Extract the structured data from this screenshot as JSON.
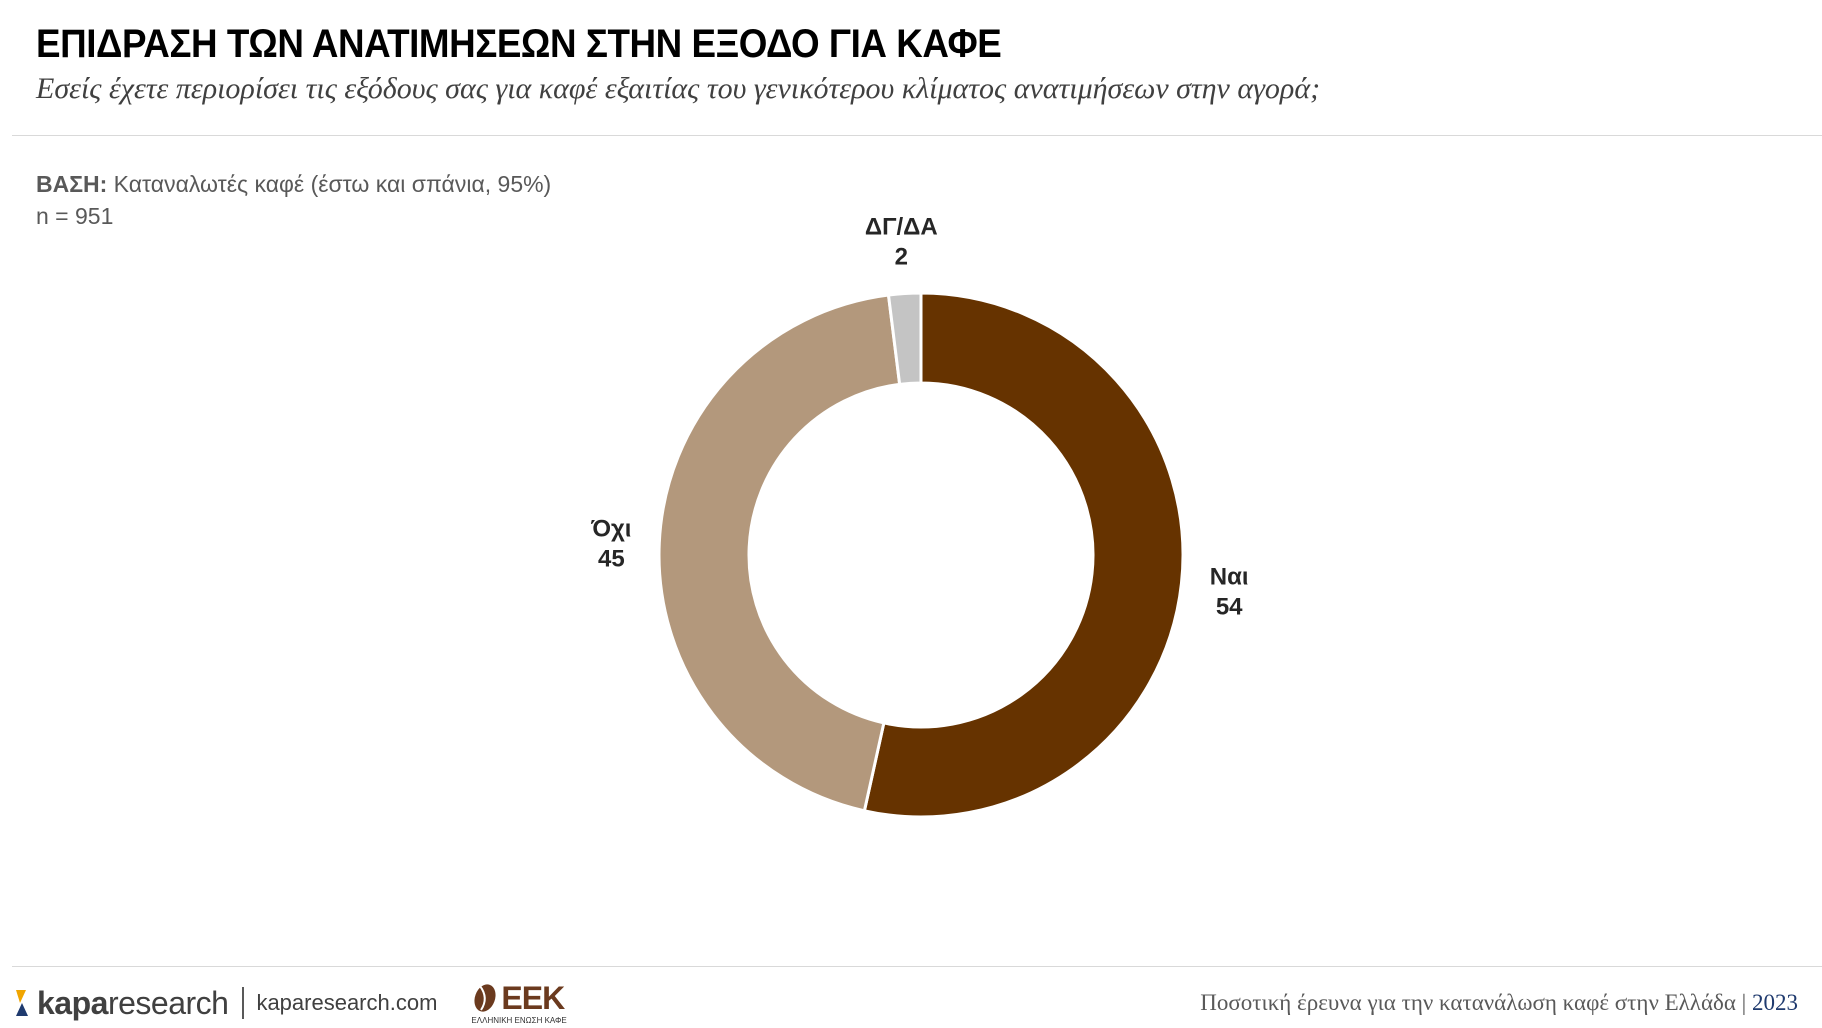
{
  "header": {
    "title": "ΕΠΙΔΡΑΣΗ ΤΩΝ ΑΝΑΤΙΜΗΣΕΩΝ ΣΤΗΝ ΕΞΟΔΟ ΓΙΑ ΚΑΦΕ",
    "subtitle": "Εσείς έχετε περιορίσει τις εξόδους σας για καφέ εξαιτίας του γενικότερου κλίματος ανατιμήσεων στην αγορά;"
  },
  "base": {
    "label": "ΒΑΣΗ:",
    "text": " Καταναλωτές καφέ (έστω και σπάνια, 95%)",
    "n": "n = 951"
  },
  "chart_data": {
    "type": "pie",
    "donut": true,
    "categories": [
      "Ναι",
      "Όχι",
      "ΔΓ/ΔΑ"
    ],
    "values": [
      54,
      45,
      2
    ],
    "colors": [
      "#663300",
      "#b3987c",
      "#c4c4c4"
    ],
    "legend": "none",
    "data_labels": "outside"
  },
  "footer": {
    "brand_bold": "kapa",
    "brand_light": "research",
    "site": "kaparesearch.com",
    "partner_logo": "ΕΕΚ",
    "partner_sub": "ΕΛΛΗΝΙΚΗ ΕΝΩΣΗ ΚΑΦΕ",
    "survey": "Ποσοτική έρευνα για την κατανάλωση καφέ στην Ελλάδα |",
    "year": "2023"
  }
}
